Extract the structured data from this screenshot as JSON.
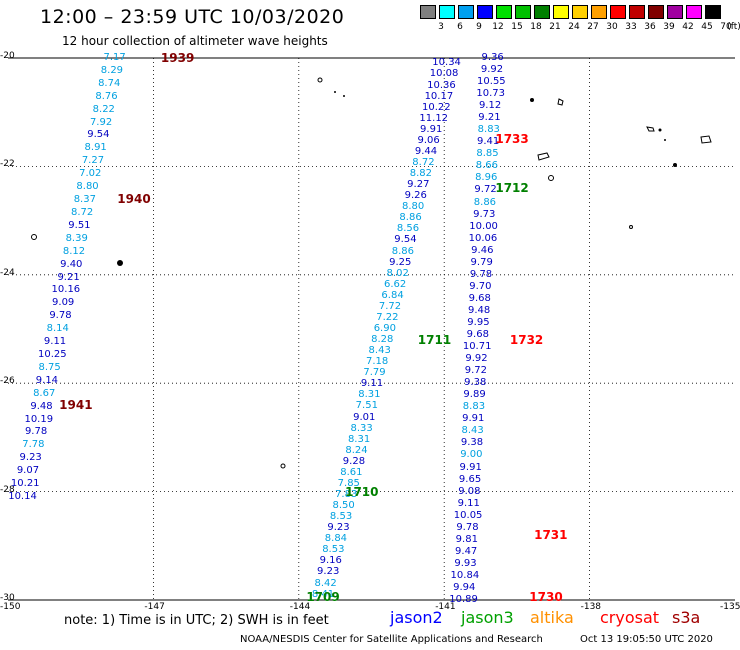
{
  "header": {
    "title": "12:00 – 23:59 UTC 10/03/2020",
    "subtitle": "12 hour collection of altimeter wave heights"
  },
  "colorbar": {
    "unit": "(ft)",
    "bins": [
      {
        "label": "3",
        "color": "#808080"
      },
      {
        "label": "6",
        "color": "#00ffff"
      },
      {
        "label": "9",
        "color": "#00a0f0"
      },
      {
        "label": "12",
        "color": "#0000ff"
      },
      {
        "label": "15",
        "color": "#00e000"
      },
      {
        "label": "18",
        "color": "#00c000"
      },
      {
        "label": "21",
        "color": "#008000"
      },
      {
        "label": "24",
        "color": "#ffff00"
      },
      {
        "label": "27",
        "color": "#ffd000"
      },
      {
        "label": "30",
        "color": "#ffa000"
      },
      {
        "label": "33",
        "color": "#ff0000"
      },
      {
        "label": "36",
        "color": "#c00000"
      },
      {
        "label": "39",
        "color": "#800000"
      },
      {
        "label": "42",
        "color": "#a000a0"
      },
      {
        "label": "45",
        "color": "#ff00ff"
      },
      {
        "label": "70",
        "color": "#000000"
      }
    ]
  },
  "map": {
    "lat_ticks": [
      "-20",
      "-22",
      "-24",
      "-26",
      "-28",
      "-30"
    ],
    "lon_ticks": [
      "-150",
      "-147",
      "-144",
      "-141",
      "-138",
      "-135"
    ],
    "lat_range": [
      -30,
      -20
    ],
    "lon_range": [
      -150,
      -135
    ],
    "colors": {
      "light": "#00a0e0",
      "dark": "#0000c0",
      "jason3": "#008000",
      "cryosat": "#ff0000",
      "brown": "#800000"
    },
    "track_labels": [
      {
        "text": "1939",
        "lat": -20.0,
        "lon": -146.5,
        "color_key": "brown"
      },
      {
        "text": "1940",
        "lat": -22.6,
        "lon": -147.4,
        "color_key": "brown"
      },
      {
        "text": "1941",
        "lat": -26.4,
        "lon": -148.6,
        "color_key": "brown"
      },
      {
        "text": "1733",
        "lat": -21.5,
        "lon": -139.6,
        "color_key": "cryosat"
      },
      {
        "text": "1712",
        "lat": -22.4,
        "lon": -139.6,
        "color_key": "jason3"
      },
      {
        "text": "1711",
        "lat": -25.2,
        "lon": -141.2,
        "color_key": "jason3"
      },
      {
        "text": "1732",
        "lat": -25.2,
        "lon": -139.3,
        "color_key": "cryosat"
      },
      {
        "text": "1710",
        "lat": -28.0,
        "lon": -142.7,
        "color_key": "jason3"
      },
      {
        "text": "1731",
        "lat": -28.8,
        "lon": -138.8,
        "color_key": "cryosat"
      },
      {
        "text": "1709",
        "lat": -29.95,
        "lon": -143.5,
        "color_key": "jason3"
      },
      {
        "text": "1730",
        "lat": -29.95,
        "lon": -138.9,
        "color_key": "cryosat"
      }
    ],
    "tracks": [
      {
        "lat_start": -20.0,
        "lon_start": -147.8,
        "lat_end": -28.1,
        "lon_end": -149.7,
        "readings": [
          {
            "v": "7.17",
            "c": "light"
          },
          {
            "v": "8.29",
            "c": "light"
          },
          {
            "v": "8.74",
            "c": "light"
          },
          {
            "v": "8.76",
            "c": "light"
          },
          {
            "v": "8.22",
            "c": "light"
          },
          {
            "v": "7.92",
            "c": "light"
          },
          {
            "v": "9.54",
            "c": "dark"
          },
          {
            "v": "8.91",
            "c": "light"
          },
          {
            "v": "7.27",
            "c": "light"
          },
          {
            "v": "7.02",
            "c": "light"
          },
          {
            "v": "8.80",
            "c": "light"
          },
          {
            "v": "8.37",
            "c": "light"
          },
          {
            "v": "8.72",
            "c": "light"
          },
          {
            "v": "9.51",
            "c": "dark"
          },
          {
            "v": "8.39",
            "c": "light"
          },
          {
            "v": "8.12",
            "c": "light"
          },
          {
            "v": "9.40",
            "c": "dark"
          },
          {
            "v": "9.21",
            "c": "dark"
          },
          {
            "v": "10.16",
            "c": "dark"
          },
          {
            "v": "9.09",
            "c": "dark"
          },
          {
            "v": "9.78",
            "c": "dark"
          },
          {
            "v": "8.14",
            "c": "light"
          },
          {
            "v": "9.11",
            "c": "dark"
          },
          {
            "v": "10.25",
            "c": "dark"
          },
          {
            "v": "8.75",
            "c": "light"
          },
          {
            "v": "9.14",
            "c": "dark"
          },
          {
            "v": "8.67",
            "c": "light"
          },
          {
            "v": "9.48",
            "c": "dark"
          },
          {
            "v": "10.19",
            "c": "dark"
          },
          {
            "v": "9.78",
            "c": "dark"
          },
          {
            "v": "7.78",
            "c": "light"
          },
          {
            "v": "9.23",
            "c": "dark"
          },
          {
            "v": "9.07",
            "c": "dark"
          },
          {
            "v": "10.21",
            "c": "dark"
          },
          {
            "v": "10.14",
            "c": "dark"
          }
        ]
      },
      {
        "lat_start": -20.1,
        "lon_start": -140.95,
        "lat_end": -29.9,
        "lon_end": -143.5,
        "readings": [
          {
            "v": "10.34",
            "c": "dark"
          },
          {
            "v": "10.08",
            "c": "dark"
          },
          {
            "v": "10.36",
            "c": "dark"
          },
          {
            "v": "10.17",
            "c": "dark"
          },
          {
            "v": "10.22",
            "c": "dark"
          },
          {
            "v": "11.12",
            "c": "dark"
          },
          {
            "v": "9.91",
            "c": "dark"
          },
          {
            "v": "9.06",
            "c": "dark"
          },
          {
            "v": "9.44",
            "c": "dark"
          },
          {
            "v": "8.72",
            "c": "light"
          },
          {
            "v": "8.82",
            "c": "light"
          },
          {
            "v": "9.27",
            "c": "dark"
          },
          {
            "v": "9.26",
            "c": "dark"
          },
          {
            "v": "8.80",
            "c": "light"
          },
          {
            "v": "8.86",
            "c": "light"
          },
          {
            "v": "8.56",
            "c": "light"
          },
          {
            "v": "9.54",
            "c": "dark"
          },
          {
            "v": "8.86",
            "c": "light"
          },
          {
            "v": "9.25",
            "c": "dark"
          },
          {
            "v": "8.02",
            "c": "light"
          },
          {
            "v": "6.62",
            "c": "light"
          },
          {
            "v": "6.84",
            "c": "light"
          },
          {
            "v": "7.72",
            "c": "light"
          },
          {
            "v": "7.22",
            "c": "light"
          },
          {
            "v": "6.90",
            "c": "light"
          },
          {
            "v": "8.28",
            "c": "light"
          },
          {
            "v": "8.43",
            "c": "light"
          },
          {
            "v": "7.18",
            "c": "light"
          },
          {
            "v": "7.79",
            "c": "light"
          },
          {
            "v": "9.11",
            "c": "dark"
          },
          {
            "v": "8.31",
            "c": "light"
          },
          {
            "v": "7.51",
            "c": "light"
          },
          {
            "v": "9.01",
            "c": "dark"
          },
          {
            "v": "8.33",
            "c": "light"
          },
          {
            "v": "8.31",
            "c": "light"
          },
          {
            "v": "8.24",
            "c": "light"
          },
          {
            "v": "9.28",
            "c": "dark"
          },
          {
            "v": "8.61",
            "c": "light"
          },
          {
            "v": "7.85",
            "c": "light"
          },
          {
            "v": "7.83",
            "c": "light"
          },
          {
            "v": "8.50",
            "c": "light"
          },
          {
            "v": "8.53",
            "c": "light"
          },
          {
            "v": "9.23",
            "c": "dark"
          },
          {
            "v": "8.84",
            "c": "light"
          },
          {
            "v": "8.53",
            "c": "light"
          },
          {
            "v": "9.16",
            "c": "dark"
          },
          {
            "v": "9.23",
            "c": "dark"
          },
          {
            "v": "8.42",
            "c": "light"
          },
          {
            "v": "8.41",
            "c": "light"
          }
        ]
      },
      {
        "lat_start": -20.0,
        "lon_start": -140.0,
        "lat_end": -30.0,
        "lon_end": -140.6,
        "readings": [
          {
            "v": "9.36",
            "c": "dark"
          },
          {
            "v": "9.92",
            "c": "dark"
          },
          {
            "v": "10.55",
            "c": "dark"
          },
          {
            "v": "10.73",
            "c": "dark"
          },
          {
            "v": "9.12",
            "c": "dark"
          },
          {
            "v": "9.21",
            "c": "dark"
          },
          {
            "v": "8.83",
            "c": "light"
          },
          {
            "v": "9.41",
            "c": "dark"
          },
          {
            "v": "8.85",
            "c": "light"
          },
          {
            "v": "8.66",
            "c": "light"
          },
          {
            "v": "8.96",
            "c": "light"
          },
          {
            "v": "9.72",
            "c": "dark"
          },
          {
            "v": "8.86",
            "c": "light"
          },
          {
            "v": "9.73",
            "c": "dark"
          },
          {
            "v": "10.00",
            "c": "dark"
          },
          {
            "v": "10.06",
            "c": "dark"
          },
          {
            "v": "9.46",
            "c": "dark"
          },
          {
            "v": "9.79",
            "c": "dark"
          },
          {
            "v": "9.78",
            "c": "dark"
          },
          {
            "v": "9.70",
            "c": "dark"
          },
          {
            "v": "9.68",
            "c": "dark"
          },
          {
            "v": "9.48",
            "c": "dark"
          },
          {
            "v": "9.95",
            "c": "dark"
          },
          {
            "v": "9.68",
            "c": "dark"
          },
          {
            "v": "10.71",
            "c": "dark"
          },
          {
            "v": "9.92",
            "c": "dark"
          },
          {
            "v": "9.72",
            "c": "dark"
          },
          {
            "v": "9.38",
            "c": "dark"
          },
          {
            "v": "9.89",
            "c": "dark"
          },
          {
            "v": "8.83",
            "c": "light"
          },
          {
            "v": "9.91",
            "c": "dark"
          },
          {
            "v": "8.43",
            "c": "light"
          },
          {
            "v": "9.38",
            "c": "dark"
          },
          {
            "v": "9.00",
            "c": "light"
          },
          {
            "v": "9.91",
            "c": "dark"
          },
          {
            "v": "9.65",
            "c": "dark"
          },
          {
            "v": "9.08",
            "c": "dark"
          },
          {
            "v": "9.11",
            "c": "dark"
          },
          {
            "v": "10.05",
            "c": "dark"
          },
          {
            "v": "9.78",
            "c": "dark"
          },
          {
            "v": "9.81",
            "c": "dark"
          },
          {
            "v": "9.47",
            "c": "dark"
          },
          {
            "v": "9.93",
            "c": "dark"
          },
          {
            "v": "10.84",
            "c": "dark"
          },
          {
            "v": "9.94",
            "c": "dark"
          },
          {
            "v": "10.89",
            "c": "dark"
          }
        ]
      }
    ]
  },
  "footer": {
    "note": "note: 1) Time is in UTC; 2) SWH is in feet",
    "satellites": [
      {
        "name": "jason2",
        "color": "#0000ff"
      },
      {
        "name": "jason3",
        "color": "#00a000"
      },
      {
        "name": "altika",
        "color": "#ff9000"
      },
      {
        "name": "cryosat",
        "color": "#ff0000"
      },
      {
        "name": "s3a",
        "color": "#a00000"
      }
    ],
    "credit": "NOAA/NESDIS Center for Satellite Applications and Research",
    "timestamp": "Oct 13 19:05:50 UTC 2020"
  }
}
